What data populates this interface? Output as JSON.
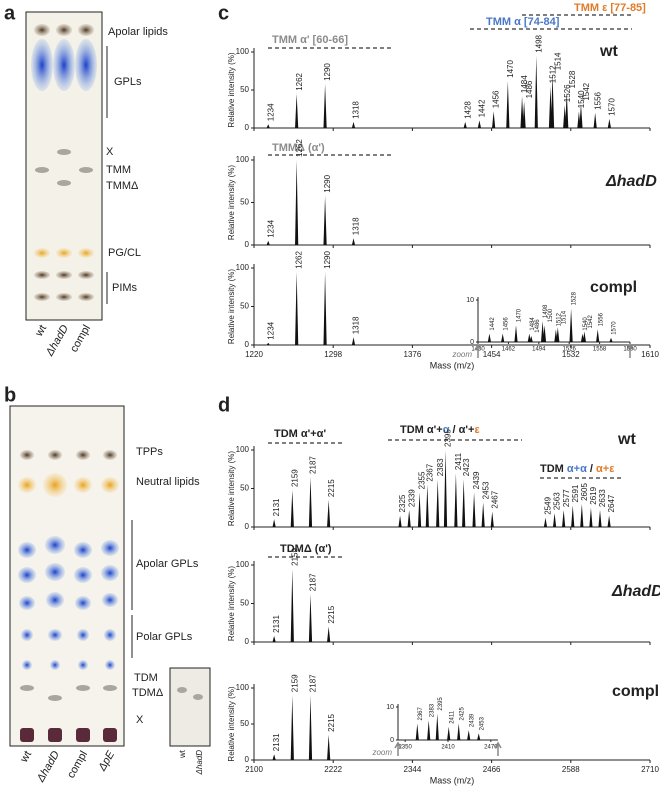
{
  "panel_a": {
    "letter": "a",
    "labels": [
      "Apolar lipids",
      "GPLs",
      "X",
      "TMM",
      "TMMΔ",
      "PG/CL",
      "PIMs"
    ],
    "lanes": [
      "wt",
      "ΔhadD",
      "compl"
    ]
  },
  "panel_b": {
    "letter": "b",
    "labels": [
      "TPPs",
      "Neutral lipids",
      "Apolar GPLs",
      "Polar GPLs",
      "TDM",
      "TDMΔ",
      "X"
    ],
    "lanes": [
      "wt",
      "ΔhadD",
      "compl",
      "ΔpE"
    ],
    "inset_lanes": [
      "wt",
      "ΔhadD"
    ]
  },
  "panel_c": {
    "letter": "c",
    "y_label": "Relative intensity (%)",
    "x_label": "Mass (m/z)",
    "xlim": [
      1220,
      1610
    ],
    "xticks": [
      1220,
      1298,
      1376,
      1454,
      1532,
      1610
    ],
    "ylim": [
      0,
      100
    ],
    "yticks": [
      0,
      50,
      100
    ],
    "spectra": [
      {
        "name": "wt",
        "annotations": [
          {
            "parts": [
              {
                "text": "TMM α' [60-66]",
                "color": "#8c8c8c"
              }
            ]
          },
          {
            "parts": [
              {
                "text": "TMM α [74-84]",
                "color": "#4a78c8"
              }
            ]
          },
          {
            "parts": [
              {
                "text": "TMM ε [77-85]",
                "color": "#e07b28"
              }
            ]
          }
        ],
        "mz": [
          1234,
          1262,
          1290,
          1318,
          1428,
          1442,
          1456,
          1470,
          1484,
          1486,
          1498,
          1512,
          1514,
          1526,
          1528,
          1540,
          1542,
          1556,
          1570
        ],
        "intensity": [
          5,
          45,
          58,
          8,
          8,
          10,
          22,
          62,
          42,
          35,
          95,
          55,
          72,
          30,
          48,
          22,
          32,
          20,
          12
        ]
      },
      {
        "name": "ΔhadD",
        "annotations": [
          {
            "parts": [
              {
                "text": "TMMΔ (α')",
                "color": "#8c8c8c"
              }
            ]
          }
        ],
        "mz": [
          1234,
          1262,
          1290,
          1318
        ],
        "intensity": [
          5,
          100,
          58,
          8
        ]
      },
      {
        "name": "compl",
        "annotations": [],
        "mz": [
          1234,
          1262,
          1290,
          1318
        ],
        "intensity": [
          3,
          95,
          95,
          10
        ]
      }
    ],
    "inset": {
      "label": "zoom",
      "xlim": [
        1430,
        1590
      ],
      "xticks": [
        1430,
        1462,
        1494,
        1526,
        1558,
        1590
      ],
      "ylim": [
        0,
        10
      ],
      "yticks": [
        0,
        10
      ],
      "mz": [
        1442,
        1456,
        1470,
        1484,
        1486,
        1498,
        1500,
        1512,
        1514,
        1528,
        1540,
        1542,
        1556,
        1570
      ],
      "intensity": [
        2,
        2,
        4,
        2,
        1.5,
        5,
        4,
        3,
        3.5,
        8,
        2,
        2.5,
        3,
        1
      ]
    }
  },
  "panel_d": {
    "letter": "d",
    "y_label": "Relative intensity (%)",
    "x_label": "Mass (m/z)",
    "xlim": [
      2100,
      2710
    ],
    "xticks": [
      2100,
      2222,
      2344,
      2466,
      2588,
      2710
    ],
    "ylim": [
      0,
      100
    ],
    "yticks": [
      0,
      50,
      100
    ],
    "spectra": [
      {
        "name": "wt",
        "annotations": [
          {
            "parts": [
              {
                "text": "TDM α'+α'",
                "color": "#222222"
              }
            ]
          },
          {
            "parts": [
              {
                "text": "TDM α'+",
                "color": "#222222"
              },
              {
                "text": "α",
                "color": "#4a78c8"
              },
              {
                "text": " / α'+",
                "color": "#222222"
              },
              {
                "text": "ε",
                "color": "#e07b28"
              }
            ]
          },
          {
            "parts": [
              {
                "text": "TDM ",
                "color": "#222222"
              },
              {
                "text": "α+α",
                "color": "#4a78c8"
              },
              {
                "text": " / ",
                "color": "#222222"
              },
              {
                "text": "α+ε",
                "color": "#e07b28"
              }
            ]
          }
        ],
        "mz": [
          2131,
          2159,
          2187,
          2215,
          2325,
          2339,
          2355,
          2367,
          2383,
          2395,
          2411,
          2423,
          2439,
          2453,
          2467,
          2549,
          2563,
          2577,
          2591,
          2605,
          2619,
          2633,
          2647
        ],
        "intensity": [
          10,
          48,
          65,
          35,
          15,
          22,
          45,
          55,
          62,
          100,
          70,
          62,
          45,
          32,
          20,
          12,
          18,
          22,
          28,
          30,
          25,
          22,
          15
        ]
      },
      {
        "name": "ΔhadD",
        "annotations": [
          {
            "parts": [
              {
                "text": "TDMΔ (α')",
                "color": "#222222"
              }
            ]
          }
        ],
        "mz": [
          2131,
          2159,
          2187,
          2215
        ],
        "intensity": [
          8,
          95,
          62,
          20
        ]
      },
      {
        "name": "compl",
        "annotations": [],
        "mz": [
          2131,
          2159,
          2187,
          2215
        ],
        "intensity": [
          8,
          90,
          90,
          35
        ]
      }
    ],
    "inset": {
      "label": "zoom",
      "xlim": [
        2340,
        2480
      ],
      "xticks": [
        2350,
        2410,
        2470
      ],
      "ylim": [
        0,
        10
      ],
      "yticks": [
        0,
        10
      ],
      "mz": [
        2367,
        2383,
        2395,
        2411,
        2425,
        2439,
        2453
      ],
      "intensity": [
        5,
        6,
        8,
        4,
        5,
        3,
        2
      ]
    }
  }
}
